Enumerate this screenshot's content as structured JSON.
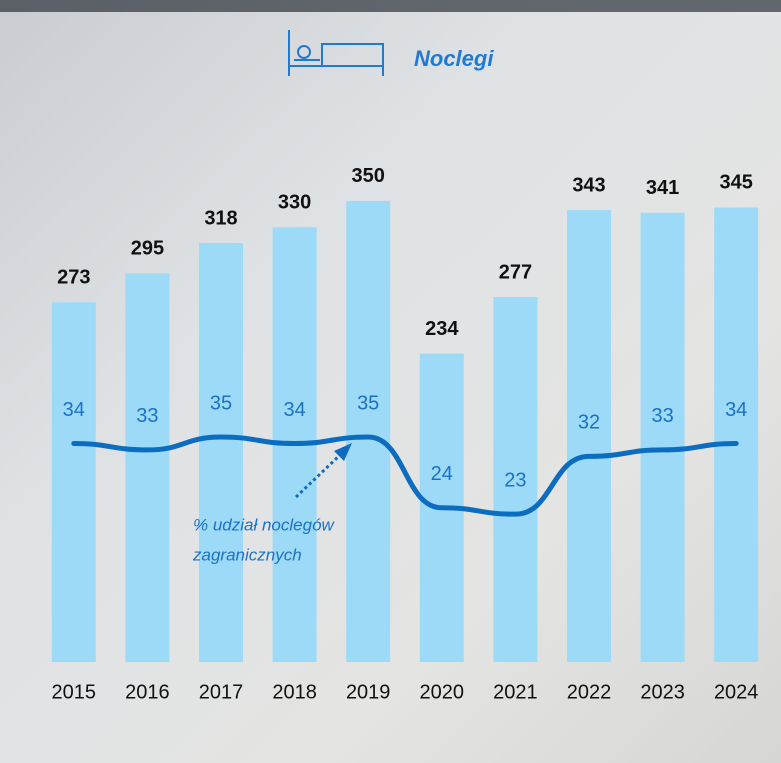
{
  "chart_data": {
    "type": "bar",
    "title": "Noclegi",
    "categories": [
      "2015",
      "2016",
      "2017",
      "2018",
      "2019",
      "2020",
      "2021",
      "2022",
      "2023",
      "2024"
    ],
    "values": [
      273,
      295,
      318,
      330,
      350,
      234,
      277,
      343,
      341,
      345
    ],
    "color": "#9ddaf8",
    "ylim": [
      0,
      400
    ],
    "line": {
      "values": [
        34,
        33,
        35,
        34,
        35,
        24,
        23,
        32,
        33,
        34
      ],
      "color": "#0b6cc0",
      "axis": "y2"
    },
    "y2lim": [
      0,
      82
    ],
    "annotation": [
      "% udział noclegów",
      "zagranicznych"
    ],
    "grid": false
  }
}
